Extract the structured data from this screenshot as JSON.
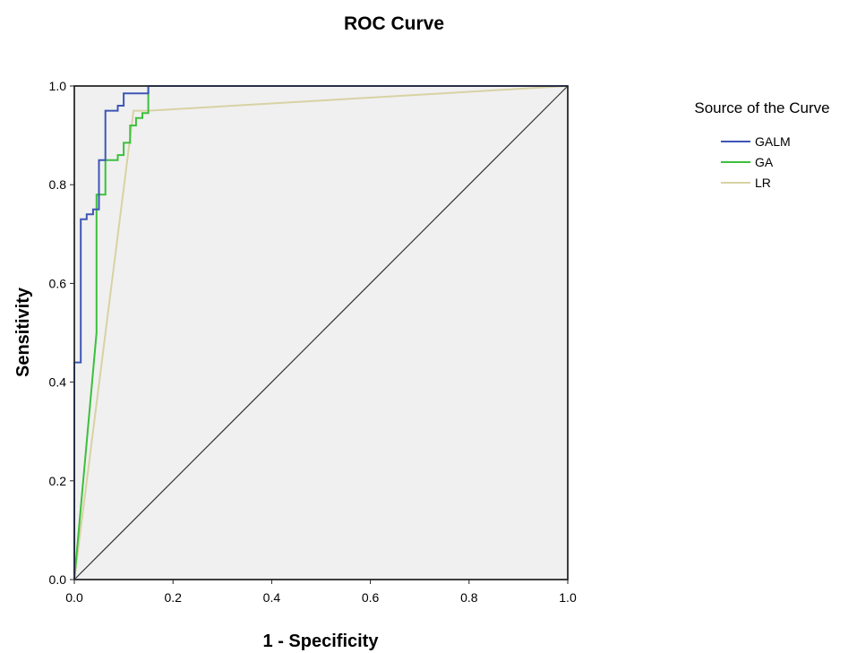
{
  "chart_data": {
    "type": "line",
    "title": "ROC Curve",
    "xlabel": "1 - Specificity",
    "ylabel": "Sensitivity",
    "xlim": [
      0.0,
      1.0
    ],
    "ylim": [
      0.0,
      1.0
    ],
    "xticks": [
      "0.0",
      "0.2",
      "0.4",
      "0.6",
      "0.8",
      "1.0"
    ],
    "yticks": [
      "0.0",
      "0.2",
      "0.4",
      "0.6",
      "0.8",
      "1.0"
    ],
    "grid": false,
    "plot_background": "#f0f0f0",
    "legend": {
      "title": "Source of the Curve",
      "position": "right"
    },
    "diagonal_reference": {
      "x": [
        0.0,
        1.0
      ],
      "y": [
        0.0,
        1.0
      ],
      "color": "#333333"
    },
    "series": [
      {
        "name": "GALM",
        "color": "#3e56b6",
        "x": [
          0.0,
          0.0,
          0.013,
          0.013,
          0.025,
          0.025,
          0.038,
          0.038,
          0.05,
          0.05,
          0.063,
          0.063,
          0.088,
          0.088,
          0.1,
          0.1,
          0.15,
          0.15,
          1.0
        ],
        "y": [
          0.0,
          0.44,
          0.44,
          0.73,
          0.73,
          0.74,
          0.74,
          0.75,
          0.75,
          0.85,
          0.85,
          0.95,
          0.95,
          0.96,
          0.96,
          0.985,
          0.985,
          1.0,
          1.0
        ]
      },
      {
        "name": "GA",
        "color": "#3cbf3c",
        "x": [
          0.0,
          0.045,
          0.045,
          0.05,
          0.05,
          0.063,
          0.063,
          0.088,
          0.088,
          0.1,
          0.1,
          0.113,
          0.113,
          0.125,
          0.125,
          0.138,
          0.138,
          0.15,
          0.15,
          1.0
        ],
        "y": [
          0.0,
          0.5,
          0.78,
          0.78,
          0.78,
          0.78,
          0.85,
          0.85,
          0.86,
          0.86,
          0.885,
          0.885,
          0.92,
          0.92,
          0.935,
          0.935,
          0.945,
          0.945,
          1.0,
          1.0
        ]
      },
      {
        "name": "LR",
        "color": "#d8d2a4",
        "x": [
          0.0,
          0.12,
          0.15,
          1.0
        ],
        "y": [
          0.0,
          0.95,
          0.95,
          1.0
        ]
      }
    ]
  }
}
